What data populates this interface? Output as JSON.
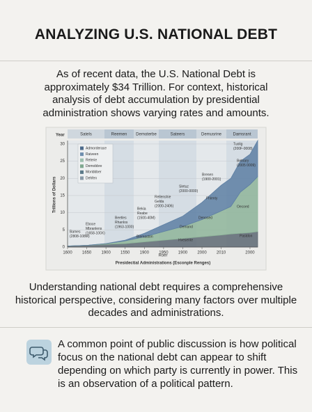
{
  "header": {
    "title": "ANALYZING U.S. NATIONAL DEBT"
  },
  "intro": "As of recent data, the U.S. National Debt is approximately $34 Trillion. For context, historical analysis of debt accumulation by presidential administration shows varying rates and amounts.",
  "chart_data": {
    "type": "area",
    "corner_label": "Year",
    "x_axis_label": "Roer",
    "x_axis_title": "Presidectial Administrations (Esconple Renges)",
    "y_axis_label": "Trillions of Dollars",
    "bands": [
      "Satels",
      "Reemen",
      "Demoterbe",
      "Sateers",
      "Demusrine",
      "Damsrant"
    ],
    "legend_items": [
      {
        "label": "Admorderace",
        "color": "#4d6b8c"
      },
      {
        "label": "Raiveen",
        "color": "#6f8fae"
      },
      {
        "label": "Reterie",
        "color": "#9cbfae"
      },
      {
        "label": "Demobbre",
        "color": "#7fa890"
      },
      {
        "label": "Monbbber",
        "color": "#5c7a8a"
      },
      {
        "label": "Dehfen",
        "color": "#8a9aa8"
      }
    ],
    "x": [
      0,
      1,
      2,
      3,
      4,
      5,
      6,
      7,
      8,
      8.5,
      9,
      9.5,
      9.9
    ],
    "series": [
      {
        "color": "#5f6a73",
        "values": [
          0.3,
          0.5,
          0.8,
          1,
          1.5,
          2,
          2.5,
          3,
          3.5,
          3.8,
          4,
          4.2,
          4.5
        ]
      },
      {
        "color": "#8fb59a",
        "values": [
          0,
          0,
          0.2,
          0.8,
          1.5,
          2.5,
          3.5,
          5,
          7,
          8,
          12,
          14,
          16
        ]
      },
      {
        "color": "#5d7fa3",
        "values": [
          0,
          0,
          0,
          0.2,
          1,
          2,
          3,
          5,
          7.5,
          8.2,
          9,
          8.8,
          10.5
        ]
      }
    ],
    "xlim": [
      0,
      9.9
    ],
    "xticks": [
      {
        "value": 0,
        "label": "1600"
      },
      {
        "value": 1,
        "label": "1650"
      },
      {
        "value": 2,
        "label": "1900"
      },
      {
        "value": 3,
        "label": "1550"
      },
      {
        "value": 4,
        "label": "1900"
      },
      {
        "value": 5,
        "label": "1950"
      },
      {
        "value": 6,
        "label": "1900"
      },
      {
        "value": 7,
        "label": "2000"
      },
      {
        "value": 8,
        "label": "2010"
      },
      {
        "value": 9.5,
        "label": "2000"
      }
    ],
    "ylim": [
      0,
      31
    ],
    "yticks": [
      0,
      5,
      10,
      15,
      20,
      25,
      30
    ],
    "annotations": [
      [
        "Bames",
        "(2808-108M)"
      ],
      [
        "Eboce",
        "Mbranlens",
        "(1658-100X)"
      ],
      [
        "Beetles",
        "Rhanlos",
        "(1963-1000)"
      ],
      [
        "Bekia",
        "Reabe",
        "(1500-40M)"
      ],
      [
        "Rellenshie",
        "Gelda",
        "(2000-2406)"
      ],
      [
        "Sletuz",
        "(2000-0000)"
      ],
      [
        "Brenen",
        "(1900-2001)"
      ],
      [
        "Tuolig",
        "(200F-0008)"
      ],
      [
        "Betnary",
        "(2005 0009)"
      ],
      [
        "Demand"
      ],
      [
        "Denosed"
      ],
      [
        "Fhlenty"
      ],
      [
        "Oecoed"
      ],
      [
        "Pastdon"
      ],
      [
        "Blemaston"
      ],
      [
        "Hvesente"
      ]
    ]
  },
  "summary": "Understanding national debt requires a comprehensive historical perspective, considering many factors over multiple decades and administrations.",
  "note": "A common point of public discussion is how political focus on the national debt can appear to shift depending on which party is currently in power. This is an observation of a political pattern."
}
